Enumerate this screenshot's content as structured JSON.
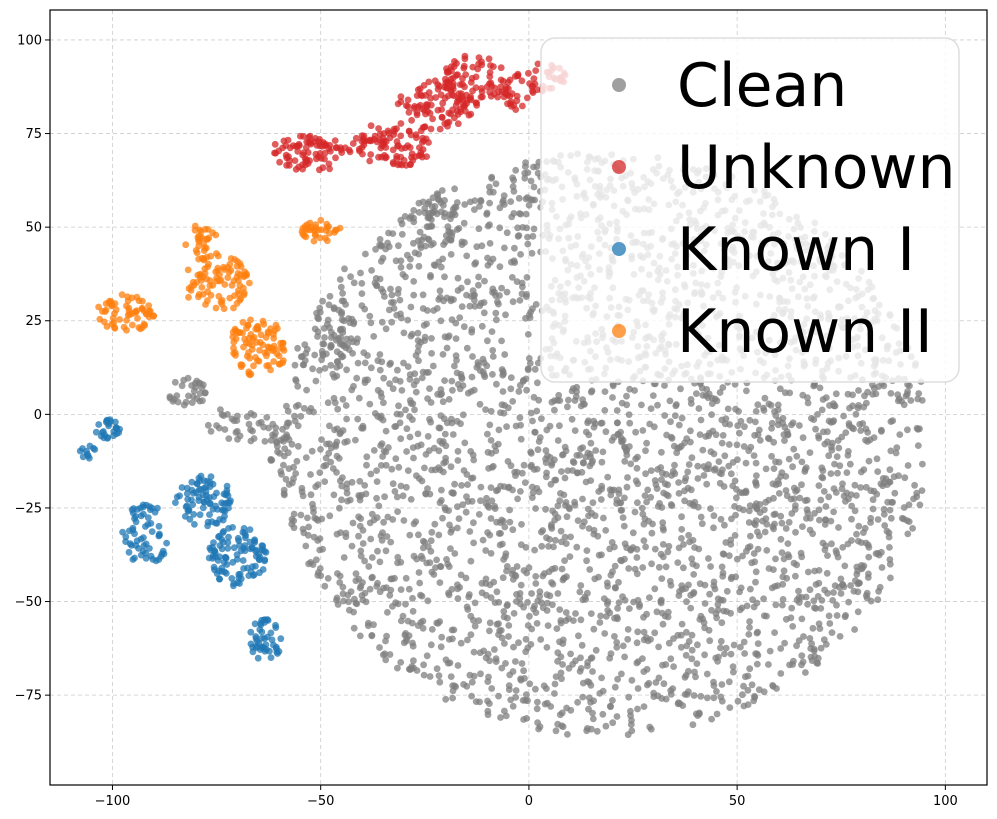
{
  "chart_data": {
    "type": "scatter",
    "title": "",
    "xlabel": "",
    "ylabel": "",
    "xlim": [
      -115,
      110
    ],
    "ylim": [
      -99,
      108
    ],
    "xticks": [
      -100,
      -50,
      0,
      50,
      100
    ],
    "yticks": [
      -75,
      -50,
      -25,
      0,
      25,
      50,
      75,
      100
    ],
    "grid": true,
    "legend_position": "top-right",
    "series": [
      {
        "name": "Clean",
        "color": "#7f7f7f",
        "clusters": [
          {
            "cx": 18,
            "cy": -8,
            "rx": 78,
            "ry": 78,
            "n": 3200
          },
          {
            "cx": -82,
            "cy": 6,
            "rx": 5,
            "ry": 4,
            "n": 30
          },
          {
            "cx": -70,
            "cy": -3,
            "rx": 8,
            "ry": 5,
            "n": 30
          },
          {
            "cx": -60,
            "cy": -8,
            "rx": 4,
            "ry": 6,
            "n": 25
          },
          {
            "cx": -22,
            "cy": 52,
            "rx": 6,
            "ry": 8,
            "n": 40
          },
          {
            "cx": -47,
            "cy": 22,
            "rx": 5,
            "ry": 10,
            "n": 40
          }
        ],
        "points": []
      },
      {
        "name": "Unknown",
        "color": "#d62728",
        "clusters": [
          {
            "cx": -52,
            "cy": 70,
            "rx": 10,
            "ry": 5,
            "n": 80
          },
          {
            "cx": -33,
            "cy": 72,
            "rx": 10,
            "ry": 6,
            "n": 90
          },
          {
            "cx": -22,
            "cy": 83,
            "rx": 10,
            "ry": 7,
            "n": 90
          },
          {
            "cx": -13,
            "cy": 89,
            "rx": 8,
            "ry": 7,
            "n": 70
          },
          {
            "cx": -3,
            "cy": 86,
            "rx": 4,
            "ry": 5,
            "n": 30
          },
          {
            "cx": 4,
            "cy": 90,
            "rx": 5,
            "ry": 4,
            "n": 30
          }
        ],
        "points": []
      },
      {
        "name": "Known I",
        "color": "#1f77b4",
        "clusters": [
          {
            "cx": -101,
            "cy": -4,
            "rx": 3,
            "ry": 3,
            "n": 25
          },
          {
            "cx": -106,
            "cy": -10,
            "rx": 2,
            "ry": 2,
            "n": 10
          },
          {
            "cx": -92,
            "cy": -32,
            "rx": 6,
            "ry": 8,
            "n": 60
          },
          {
            "cx": -78,
            "cy": -23,
            "rx": 7,
            "ry": 7,
            "n": 80
          },
          {
            "cx": -70,
            "cy": -38,
            "rx": 7,
            "ry": 8,
            "n": 100
          },
          {
            "cx": -63,
            "cy": -60,
            "rx": 4,
            "ry": 6,
            "n": 45
          }
        ],
        "points": []
      },
      {
        "name": "Known II",
        "color": "#ff7f0e",
        "clusters": [
          {
            "cx": -97,
            "cy": 27,
            "rx": 7,
            "ry": 5,
            "n": 60
          },
          {
            "cx": -79,
            "cy": 47,
            "rx": 4,
            "ry": 4,
            "n": 25
          },
          {
            "cx": -75,
            "cy": 35,
            "rx": 8,
            "ry": 8,
            "n": 90
          },
          {
            "cx": -65,
            "cy": 18,
            "rx": 7,
            "ry": 8,
            "n": 90
          },
          {
            "cx": -50,
            "cy": 49,
            "rx": 5,
            "ry": 3,
            "n": 35
          }
        ],
        "points": []
      }
    ]
  }
}
